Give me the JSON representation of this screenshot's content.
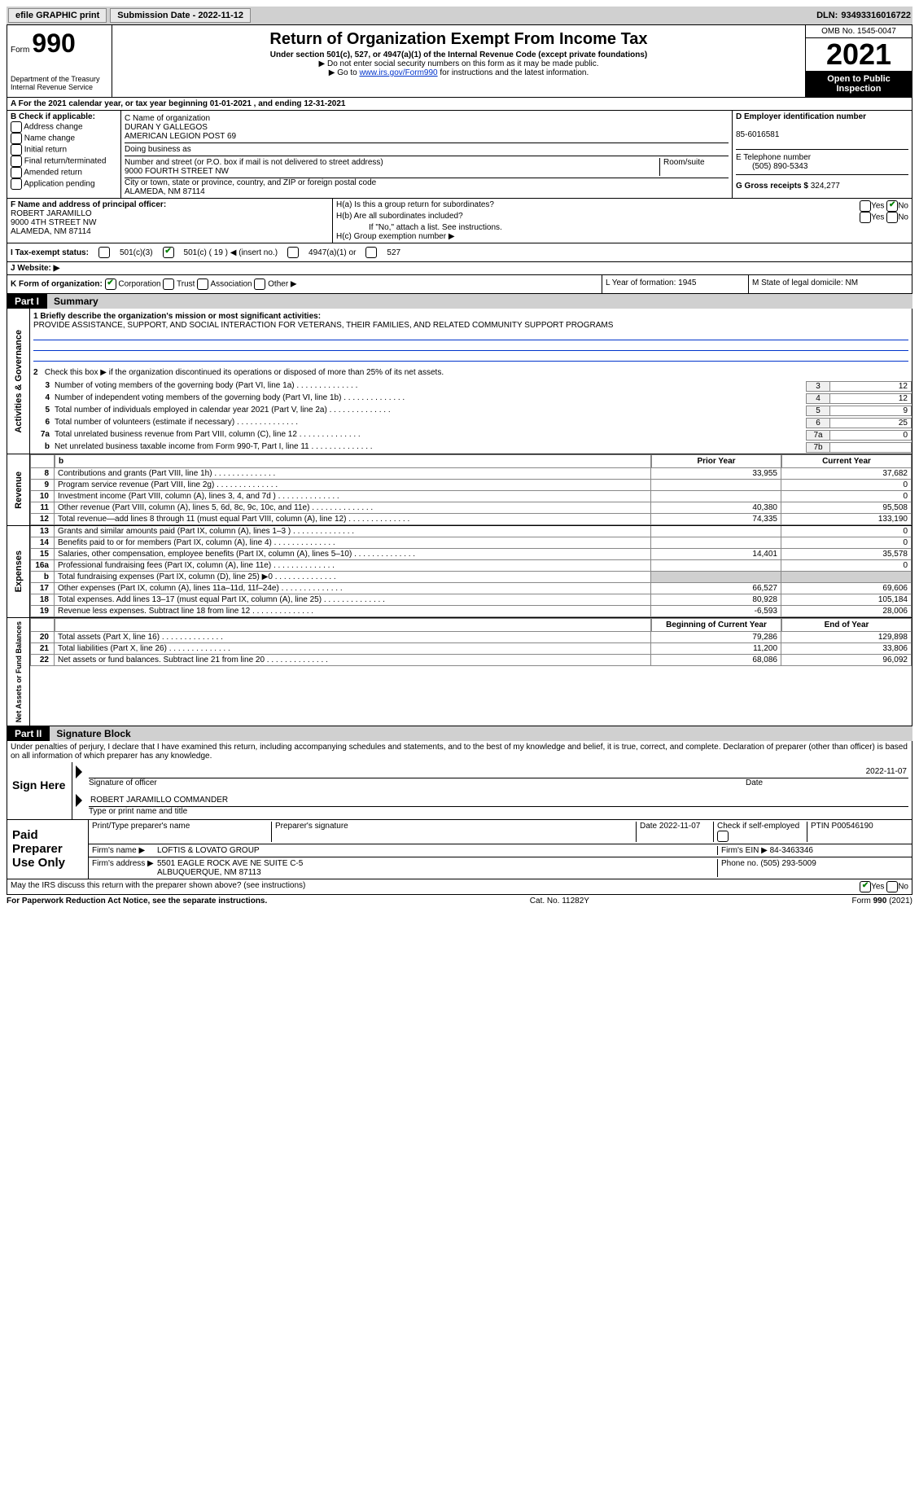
{
  "topbar": {
    "efile": "efile GRAPHIC print",
    "submission": "Submission Date - 2022-11-12",
    "dln_label": "DLN:",
    "dln": "93493316016722"
  },
  "header": {
    "form_label": "Form",
    "form_num": "990",
    "dept": "Department of the Treasury\nInternal Revenue Service",
    "title": "Return of Organization Exempt From Income Tax",
    "subtitle": "Under section 501(c), 527, or 4947(a)(1) of the Internal Revenue Code (except private foundations)",
    "note1": "▶ Do not enter social security numbers on this form as it may be made public.",
    "note2_pre": "▶ Go to ",
    "note2_link": "www.irs.gov/Form990",
    "note2_post": " for instructions and the latest information.",
    "omb": "OMB No. 1545-0047",
    "year": "2021",
    "inspect": "Open to Public Inspection"
  },
  "rowA": "A For the 2021 calendar year, or tax year beginning 01-01-2021   , and ending 12-31-2021",
  "sectionB": {
    "label": "B Check if applicable:",
    "opts": [
      "Address change",
      "Name change",
      "Initial return",
      "Final return/terminated",
      "Amended return",
      "Application pending"
    ]
  },
  "sectionC": {
    "name_label": "C Name of organization",
    "name1": "DURAN Y GALLEGOS",
    "name2": "AMERICAN LEGION POST 69",
    "dba_label": "Doing business as",
    "street_label": "Number and street (or P.O. box if mail is not delivered to street address)",
    "room_label": "Room/suite",
    "street": "9000 FOURTH STREET NW",
    "city_label": "City or town, state or province, country, and ZIP or foreign postal code",
    "city": "ALAMEDA, NM  87114"
  },
  "sectionD": {
    "ein_label": "D Employer identification number",
    "ein": "85-6016581",
    "phone_label": "E Telephone number",
    "phone": "(505) 890-5343",
    "gross_label": "G Gross receipts $",
    "gross": "324,277"
  },
  "officer": {
    "label": "F Name and address of principal officer:",
    "name": "ROBERT JARAMILLO",
    "street": "9000 4TH STREET NW",
    "city": "ALAMEDA, NM  87114"
  },
  "sectionH": {
    "ha": "H(a)  Is this a group return for subordinates?",
    "hb": "H(b)  Are all subordinates included?",
    "hnote": "If \"No,\" attach a list. See instructions.",
    "hc": "H(c)  Group exemption number ▶"
  },
  "status": {
    "label": "I   Tax-exempt status:",
    "o1": "501(c)(3)",
    "o2": "501(c) ( 19 ) ◀ (insert no.)",
    "o3": "4947(a)(1) or",
    "o4": "527",
    "web": "J   Website: ▶"
  },
  "korg": {
    "k": "K Form of organization:",
    "opts": [
      "Corporation",
      "Trust",
      "Association",
      "Other ▶"
    ],
    "l": "L Year of formation: 1945",
    "m": "M State of legal domicile: NM"
  },
  "part1": {
    "num": "Part I",
    "name": "Summary",
    "q1_label": "1   Briefly describe the organization's mission or most significant activities:",
    "q1_text": "PROVIDE ASSISTANCE, SUPPORT, AND SOCIAL INTERACTION FOR VETERANS, THEIR FAMILIES, AND RELATED COMMUNITY SUPPORT PROGRAMS",
    "q2": "Check this box ▶        if the organization discontinued its operations or disposed of more than 25% of its net assets.",
    "lines": [
      {
        "n": "3",
        "d": "Number of voting members of the governing body (Part VI, line 1a)",
        "b": "3",
        "v": "12"
      },
      {
        "n": "4",
        "d": "Number of independent voting members of the governing body (Part VI, line 1b)",
        "b": "4",
        "v": "12"
      },
      {
        "n": "5",
        "d": "Total number of individuals employed in calendar year 2021 (Part V, line 2a)",
        "b": "5",
        "v": "9"
      },
      {
        "n": "6",
        "d": "Total number of volunteers (estimate if necessary)",
        "b": "6",
        "v": "25"
      },
      {
        "n": "7a",
        "d": "Total unrelated business revenue from Part VIII, column (C), line 12",
        "b": "7a",
        "v": "0"
      },
      {
        "n": "b",
        "d": "Net unrelated business taxable income from Form 990-T, Part I, line 11",
        "b": "7b",
        "v": ""
      }
    ]
  },
  "revenue": {
    "side": "Revenue",
    "h_prior": "Prior Year",
    "h_curr": "Current Year",
    "rows": [
      {
        "n": "8",
        "d": "Contributions and grants (Part VIII, line 1h)",
        "p": "33,955",
        "c": "37,682"
      },
      {
        "n": "9",
        "d": "Program service revenue (Part VIII, line 2g)",
        "p": "",
        "c": "0"
      },
      {
        "n": "10",
        "d": "Investment income (Part VIII, column (A), lines 3, 4, and 7d )",
        "p": "",
        "c": "0"
      },
      {
        "n": "11",
        "d": "Other revenue (Part VIII, column (A), lines 5, 6d, 8c, 9c, 10c, and 11e)",
        "p": "40,380",
        "c": "95,508"
      },
      {
        "n": "12",
        "d": "Total revenue—add lines 8 through 11 (must equal Part VIII, column (A), line 12)",
        "p": "74,335",
        "c": "133,190"
      }
    ]
  },
  "expenses": {
    "side": "Expenses",
    "rows": [
      {
        "n": "13",
        "d": "Grants and similar amounts paid (Part IX, column (A), lines 1–3 )",
        "p": "",
        "c": "0"
      },
      {
        "n": "14",
        "d": "Benefits paid to or for members (Part IX, column (A), line 4)",
        "p": "",
        "c": "0"
      },
      {
        "n": "15",
        "d": "Salaries, other compensation, employee benefits (Part IX, column (A), lines 5–10)",
        "p": "14,401",
        "c": "35,578"
      },
      {
        "n": "16a",
        "d": "Professional fundraising fees (Part IX, column (A), line 11e)",
        "p": "",
        "c": "0"
      },
      {
        "n": "b",
        "d": "Total fundraising expenses (Part IX, column (D), line 25) ▶0",
        "p": "shaded",
        "c": "shaded"
      },
      {
        "n": "17",
        "d": "Other expenses (Part IX, column (A), lines 11a–11d, 11f–24e)",
        "p": "66,527",
        "c": "69,606"
      },
      {
        "n": "18",
        "d": "Total expenses. Add lines 13–17 (must equal Part IX, column (A), line 25)",
        "p": "80,928",
        "c": "105,184"
      },
      {
        "n": "19",
        "d": "Revenue less expenses. Subtract line 18 from line 12",
        "p": "-6,593",
        "c": "28,006"
      }
    ]
  },
  "netassets": {
    "side": "Net Assets or Fund Balances",
    "h_beg": "Beginning of Current Year",
    "h_end": "End of Year",
    "rows": [
      {
        "n": "20",
        "d": "Total assets (Part X, line 16)",
        "p": "79,286",
        "c": "129,898"
      },
      {
        "n": "21",
        "d": "Total liabilities (Part X, line 26)",
        "p": "11,200",
        "c": "33,806"
      },
      {
        "n": "22",
        "d": "Net assets or fund balances. Subtract line 21 from line 20",
        "p": "68,086",
        "c": "96,092"
      }
    ]
  },
  "part2": {
    "num": "Part II",
    "name": "Signature Block",
    "decl": "Under penalties of perjury, I declare that I have examined this return, including accompanying schedules and statements, and to the best of my knowledge and belief, it is true, correct, and complete. Declaration of preparer (other than officer) is based on all information of which preparer has any knowledge."
  },
  "sign": {
    "label": "Sign Here",
    "sig_label": "Signature of officer",
    "date": "2022-11-07",
    "date_label": "Date",
    "name": "ROBERT JARAMILLO COMMANDER",
    "name_label": "Type or print name and title"
  },
  "prep": {
    "label": "Paid Preparer Use Only",
    "r1": {
      "c1": "Print/Type preparer's name",
      "c2": "Preparer's signature",
      "c3": "Date 2022-11-07",
      "c4": "Check        if self-employed",
      "c5": "PTIN P00546190"
    },
    "r2": {
      "label": "Firm's name    ▶",
      "val": "LOFTIS & LOVATO GROUP",
      "ein_l": "Firm's EIN ▶",
      "ein": "84-3463346"
    },
    "r3": {
      "label": "Firm's address ▶",
      "val": "5501 EAGLE ROCK AVE NE SUITE C-5",
      "city": "ALBUQUERQUE, NM  87113",
      "ph_l": "Phone no.",
      "ph": "(505) 293-5009"
    }
  },
  "footer": {
    "q": "May the IRS discuss this return with the preparer shown above? (see instructions)",
    "paperwork": "For Paperwork Reduction Act Notice, see the separate instructions.",
    "cat": "Cat. No. 11282Y",
    "form": "Form 990 (2021)"
  },
  "side_act": "Activities & Governance"
}
